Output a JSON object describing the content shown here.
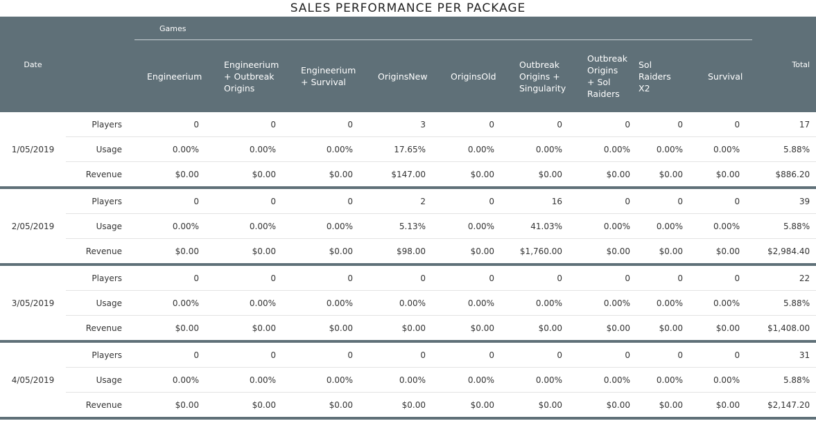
{
  "header": {
    "title": "SALES PERFORMANCE PER PACKAGE",
    "date_label": "Date",
    "group_label": "Games",
    "columns": [
      "Engineerium",
      "Engineerium + Outbreak Origins",
      "Engineerium + Survival",
      "OriginsNew",
      "OriginsOld",
      "Outbreak Origins + Singularity",
      "Outbreak Origins + Sol Raiders",
      "Sol Raiders X2",
      "Survival"
    ],
    "total_label": "Total"
  },
  "rows": [
    {
      "date": "1/05/2019",
      "metrics": [
        {
          "label": "Players",
          "values": [
            "0",
            "0",
            "0",
            "3",
            "0",
            "0",
            "0",
            "0",
            "0"
          ],
          "total": "17"
        },
        {
          "label": "Usage",
          "values": [
            "0.00%",
            "0.00%",
            "0.00%",
            "17.65%",
            "0.00%",
            "0.00%",
            "0.00%",
            "0.00%",
            "0.00%"
          ],
          "total": "5.88%"
        },
        {
          "label": "Revenue",
          "values": [
            "$0.00",
            "$0.00",
            "$0.00",
            "$147.00",
            "$0.00",
            "$0.00",
            "$0.00",
            "$0.00",
            "$0.00"
          ],
          "total": "$886.20"
        }
      ]
    },
    {
      "date": "2/05/2019",
      "metrics": [
        {
          "label": "Players",
          "values": [
            "0",
            "0",
            "0",
            "2",
            "0",
            "16",
            "0",
            "0",
            "0"
          ],
          "total": "39"
        },
        {
          "label": "Usage",
          "values": [
            "0.00%",
            "0.00%",
            "0.00%",
            "5.13%",
            "0.00%",
            "41.03%",
            "0.00%",
            "0.00%",
            "0.00%"
          ],
          "total": "5.88%"
        },
        {
          "label": "Revenue",
          "values": [
            "$0.00",
            "$0.00",
            "$0.00",
            "$98.00",
            "$0.00",
            "$1,760.00",
            "$0.00",
            "$0.00",
            "$0.00"
          ],
          "total": "$2,984.40"
        }
      ]
    },
    {
      "date": "3/05/2019",
      "metrics": [
        {
          "label": "Players",
          "values": [
            "0",
            "0",
            "0",
            "0",
            "0",
            "0",
            "0",
            "0",
            "0"
          ],
          "total": "22"
        },
        {
          "label": "Usage",
          "values": [
            "0.00%",
            "0.00%",
            "0.00%",
            "0.00%",
            "0.00%",
            "0.00%",
            "0.00%",
            "0.00%",
            "0.00%"
          ],
          "total": "5.88%"
        },
        {
          "label": "Revenue",
          "values": [
            "$0.00",
            "$0.00",
            "$0.00",
            "$0.00",
            "$0.00",
            "$0.00",
            "$0.00",
            "$0.00",
            "$0.00"
          ],
          "total": "$1,408.00"
        }
      ]
    },
    {
      "date": "4/05/2019",
      "metrics": [
        {
          "label": "Players",
          "values": [
            "0",
            "0",
            "0",
            "0",
            "0",
            "0",
            "0",
            "0",
            "0"
          ],
          "total": "31"
        },
        {
          "label": "Usage",
          "values": [
            "0.00%",
            "0.00%",
            "0.00%",
            "0.00%",
            "0.00%",
            "0.00%",
            "0.00%",
            "0.00%",
            "0.00%"
          ],
          "total": "5.88%"
        },
        {
          "label": "Revenue",
          "values": [
            "$0.00",
            "$0.00",
            "$0.00",
            "$0.00",
            "$0.00",
            "$0.00",
            "$0.00",
            "$0.00",
            "$0.00"
          ],
          "total": "$2,147.20"
        }
      ]
    }
  ]
}
